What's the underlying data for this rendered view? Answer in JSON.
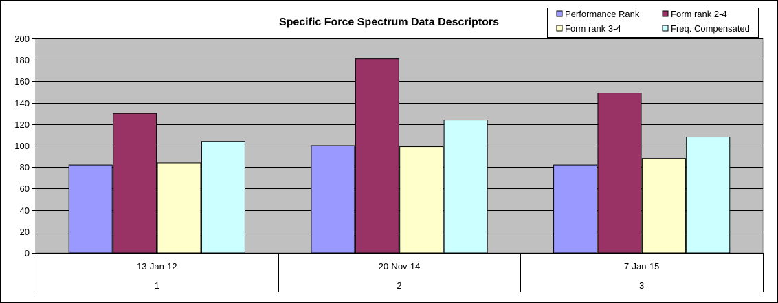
{
  "chart_data": {
    "type": "bar",
    "title": "Specific Force Spectrum Data Descriptors",
    "xlabel": "",
    "ylabel": "",
    "ylim": [
      0,
      200
    ],
    "yticks": [
      0,
      20,
      40,
      60,
      80,
      100,
      120,
      140,
      160,
      180,
      200
    ],
    "categories": [
      {
        "date": "13-Jan-12",
        "index": "1"
      },
      {
        "date": "20-Nov-14",
        "index": "2"
      },
      {
        "date": "7-Jan-15",
        "index": "3"
      }
    ],
    "series": [
      {
        "name": "Performance Rank",
        "color": "#9999ff",
        "values": [
          82,
          100,
          82
        ]
      },
      {
        "name": "Form rank 2-4",
        "color": "#993366",
        "values": [
          130,
          181,
          149
        ]
      },
      {
        "name": "Form rank 3-4",
        "color": "#ffffcc",
        "values": [
          84,
          99,
          88
        ]
      },
      {
        "name": "Freq. Compensated",
        "color": "#ccffff",
        "values": [
          104,
          124,
          108
        ]
      }
    ],
    "grid": true,
    "plot_background": "#c0c0c0",
    "legend_position": "top-right"
  }
}
